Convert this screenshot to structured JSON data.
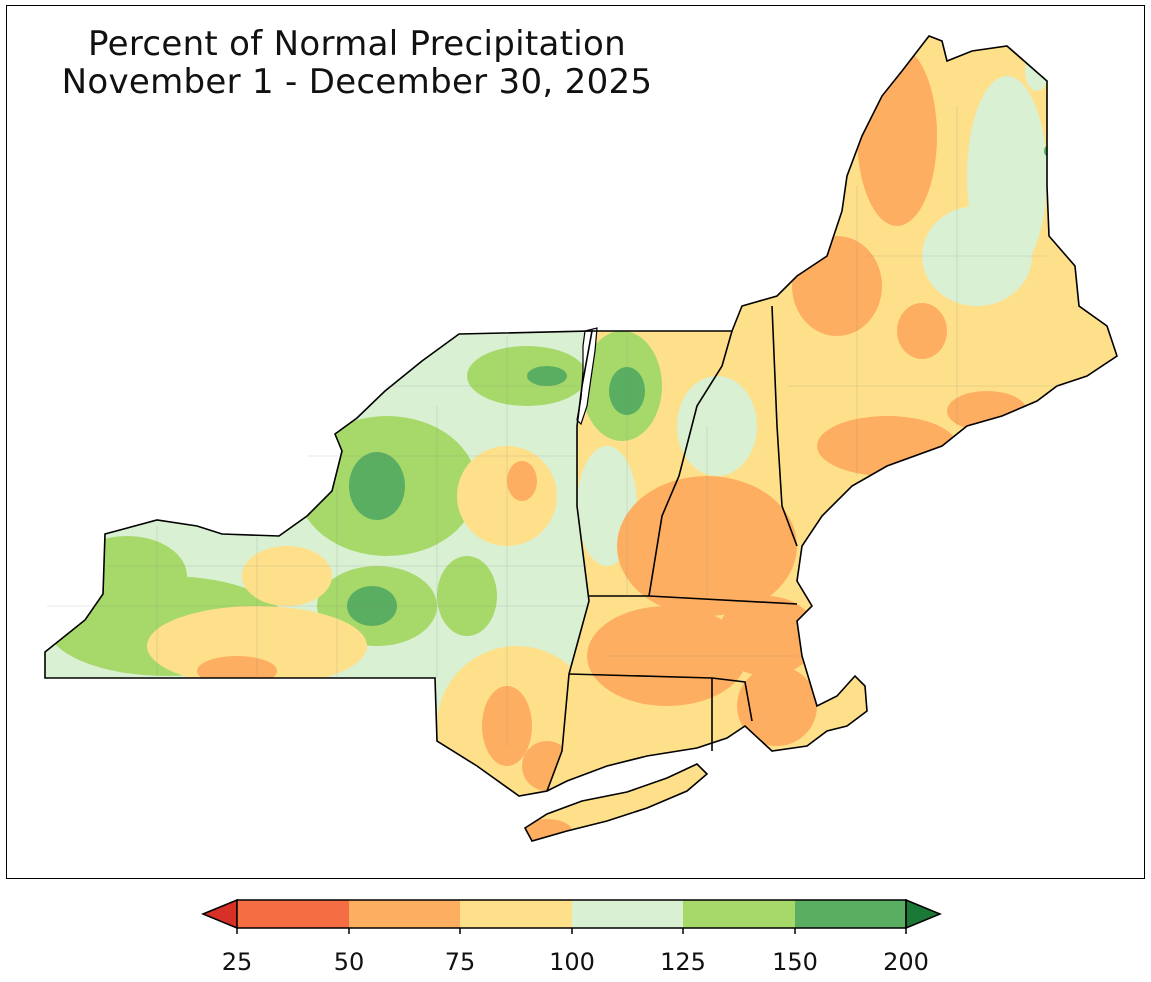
{
  "title": {
    "line1": "Percent of Normal Precipitation",
    "line2": "November 1 - December 30, 2025"
  },
  "legend": {
    "ticks": [
      "25",
      "50",
      "75",
      "100",
      "125",
      "150",
      "200"
    ],
    "colors": {
      "under_25": "#d73027",
      "25_50": "#f46d43",
      "50_75": "#fdae61",
      "75_100": "#fee08b",
      "100_125": "#d9f0d3",
      "125_150": "#a6d96a",
      "150_200": "#5aae61",
      "over_200": "#1b7837"
    }
  },
  "map": {
    "region": "Northeast United States",
    "states": [
      "NY",
      "VT",
      "NH",
      "ME",
      "MA",
      "CT",
      "RI"
    ],
    "background": "#ffffff",
    "water": "#ffffff"
  }
}
